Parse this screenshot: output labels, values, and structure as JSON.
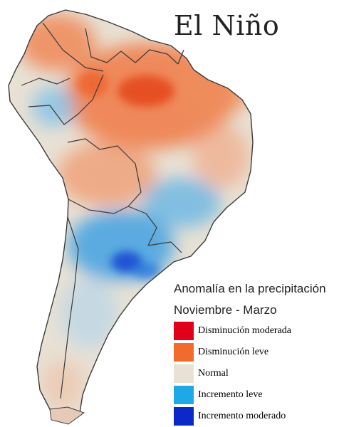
{
  "map": {
    "title": "El Niño",
    "legend": {
      "title": "Anomalía en la precipitación",
      "subtitle": "Noviembre - Marzo",
      "items": [
        {
          "label": "Disminución moderada",
          "color": "#e0001a"
        },
        {
          "label": "Disminución leve",
          "color": "#f26a2e"
        },
        {
          "label": "Normal",
          "color": "#e8e1d4"
        },
        {
          "label": "Incremento leve",
          "color": "#1ea8e6"
        },
        {
          "label": "Incremento moderado",
          "color": "#0b28c8"
        }
      ]
    }
  }
}
